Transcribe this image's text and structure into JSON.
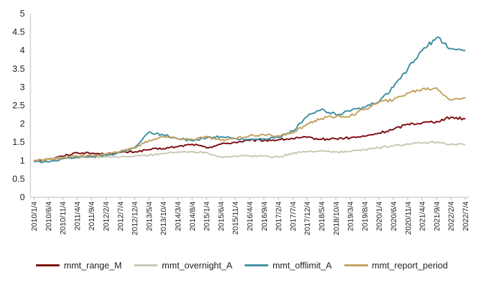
{
  "chart_data": {
    "type": "line",
    "title": "",
    "xlabel": "",
    "ylabel": "",
    "ylim": [
      0,
      5
    ],
    "yticks": [
      "0",
      "0.5",
      "1",
      "1.5",
      "2",
      "2.5",
      "3",
      "3.5",
      "4",
      "4.5",
      "5"
    ],
    "x": [
      "2010/1/4",
      "2010/6/4",
      "2010/11/4",
      "2011/4/4",
      "2011/9/4",
      "2012/2/4",
      "2012/7/4",
      "2012/12/4",
      "2013/5/4",
      "2013/10/4",
      "2014/3/4",
      "2014/8/4",
      "2015/1/4",
      "2015/6/4",
      "2015/11/4",
      "2016/4/4",
      "2016/9/4",
      "2017/2/4",
      "2017/7/4",
      "2017/12/4",
      "2018/5/4",
      "2018/10/4",
      "2019/3/4",
      "2019/8/4",
      "2020/1/4",
      "2020/6/4",
      "2020/11/4",
      "2021/4/4",
      "2021/9/4",
      "2022/2/4",
      "2022/7/4"
    ],
    "series": [
      {
        "name": "mmt_range_M",
        "color": "#7b0c10",
        "values": [
          1.0,
          1.04,
          1.12,
          1.22,
          1.2,
          1.18,
          1.22,
          1.24,
          1.3,
          1.33,
          1.38,
          1.45,
          1.35,
          1.45,
          1.5,
          1.55,
          1.55,
          1.57,
          1.6,
          1.63,
          1.58,
          1.6,
          1.62,
          1.66,
          1.75,
          1.85,
          2.0,
          2.03,
          2.07,
          2.18,
          2.14
        ]
      },
      {
        "name": "mmt_overnight_A",
        "color": "#c8c8b4",
        "values": [
          1.0,
          1.05,
          1.07,
          1.08,
          1.09,
          1.1,
          1.1,
          1.12,
          1.15,
          1.2,
          1.23,
          1.25,
          1.22,
          1.1,
          1.12,
          1.13,
          1.12,
          1.1,
          1.2,
          1.25,
          1.27,
          1.23,
          1.25,
          1.3,
          1.35,
          1.4,
          1.45,
          1.48,
          1.5,
          1.45,
          1.44
        ]
      },
      {
        "name": "mmt_offlimit_A",
        "color": "#3e8ea1",
        "values": [
          0.97,
          0.96,
          1.05,
          1.1,
          1.12,
          1.14,
          1.22,
          1.35,
          1.78,
          1.7,
          1.6,
          1.55,
          1.62,
          1.65,
          1.6,
          1.58,
          1.6,
          1.63,
          1.8,
          2.2,
          2.4,
          2.25,
          2.35,
          2.45,
          2.6,
          3.0,
          3.5,
          4.0,
          4.35,
          4.05,
          4.0
        ]
      },
      {
        "name": "mmt_report_period",
        "color": "#c2a15e",
        "values": [
          1.0,
          1.03,
          1.08,
          1.12,
          1.14,
          1.18,
          1.25,
          1.35,
          1.55,
          1.65,
          1.6,
          1.58,
          1.65,
          1.55,
          1.6,
          1.68,
          1.7,
          1.68,
          1.75,
          2.0,
          2.15,
          2.2,
          2.22,
          2.4,
          2.6,
          2.65,
          2.85,
          2.95,
          2.98,
          2.65,
          2.72
        ]
      }
    ],
    "legend": "bottom"
  }
}
